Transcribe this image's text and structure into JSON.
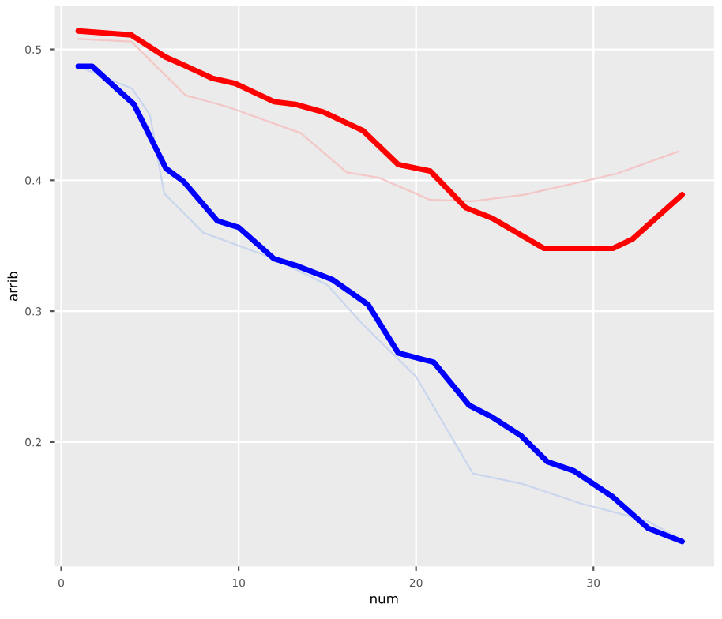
{
  "chart_data": {
    "type": "line",
    "xlabel": "num",
    "ylabel": "arrib",
    "xlim": [
      -0.4,
      36.8
    ],
    "ylim": [
      0.105,
      0.533
    ],
    "xticks": [
      0,
      10,
      20,
      30
    ],
    "yticks": [
      0.2,
      0.3,
      0.4,
      0.5
    ],
    "grid": true,
    "series": [
      {
        "color": "#f4c6c6",
        "x": [
          0.96,
          3.95,
          7.0,
          9.4,
          13.5,
          16.1,
          17.9,
          20.8,
          23.2,
          26.1,
          31.3,
          34.8
        ],
        "values": [
          0.508,
          0.506,
          0.465,
          0.456,
          0.436,
          0.406,
          0.402,
          0.385,
          0.384,
          0.389,
          0.405,
          0.422
        ]
      },
      {
        "color": "#c9d6ee",
        "x": [
          0.96,
          4.0,
          5.0,
          5.8,
          8.0,
          12.0,
          15.0,
          17.0,
          20.0,
          23.2,
          26.0,
          29.3,
          33.0,
          35.0
        ],
        "values": [
          0.487,
          0.47,
          0.45,
          0.39,
          0.36,
          0.34,
          0.32,
          0.29,
          0.25,
          0.176,
          0.168,
          0.153,
          0.14,
          0.125
        ]
      },
      {
        "color": "#ff0000",
        "x": [
          0.96,
          3.95,
          5.9,
          6.9,
          8.5,
          9.8,
          12.0,
          13.2,
          14.8,
          17.0,
          19.0,
          20.8,
          22.8,
          24.3,
          27.2,
          31.1,
          32.2,
          35.0
        ],
        "values": [
          0.514,
          0.511,
          0.494,
          0.488,
          0.478,
          0.474,
          0.46,
          0.458,
          0.452,
          0.438,
          0.412,
          0.407,
          0.379,
          0.371,
          0.348,
          0.348,
          0.355,
          0.389
        ]
      },
      {
        "color": "#0000ff",
        "x": [
          0.96,
          1.75,
          4.1,
          5.9,
          6.9,
          8.8,
          10.0,
          12.0,
          13.2,
          15.3,
          17.3,
          19.0,
          21.0,
          23.0,
          24.3,
          25.9,
          27.4,
          28.9,
          31.1,
          33.1,
          35.0
        ],
        "values": [
          0.487,
          0.487,
          0.458,
          0.409,
          0.399,
          0.369,
          0.364,
          0.34,
          0.335,
          0.324,
          0.305,
          0.268,
          0.261,
          0.228,
          0.219,
          0.205,
          0.185,
          0.178,
          0.158,
          0.134,
          0.124
        ]
      }
    ]
  }
}
